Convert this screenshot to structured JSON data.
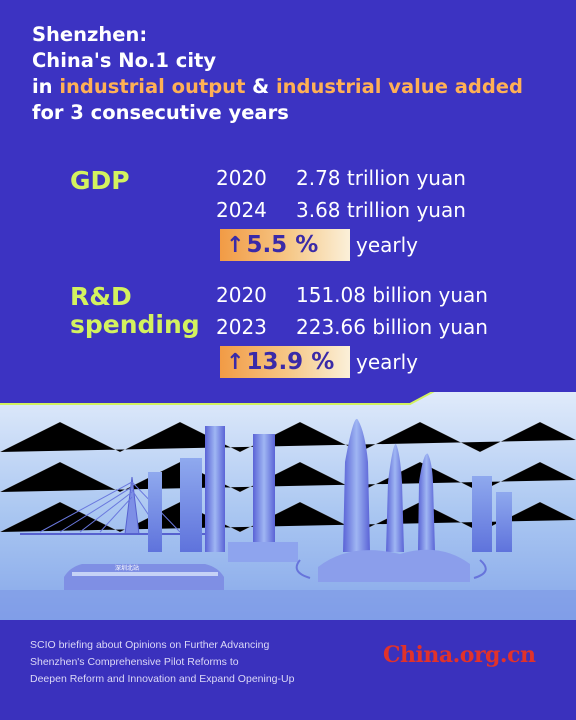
{
  "title": {
    "line1": "Shenzhen:",
    "line2": "China's No.1 city",
    "line3_prefix": "in ",
    "line3_hl1": "industrial output",
    "line3_mid": " & ",
    "line3_hl2": "industrial value added",
    "line4": "for 3 consecutive years"
  },
  "gdp": {
    "label": "GDP",
    "rows": [
      {
        "year": "2020",
        "value": "2.78 trillion yuan"
      },
      {
        "year": "2024",
        "value": "3.68 trillion yuan"
      }
    ],
    "growth": "5.5 %",
    "growth_unit": "yearly"
  },
  "rd": {
    "label_line1": "R&D",
    "label_line2": "spending",
    "rows": [
      {
        "year": "2020",
        "value": "151.08 billion yuan"
      },
      {
        "year": "2023",
        "value": "223.66 billion yuan"
      }
    ],
    "growth": "13.9 %",
    "growth_unit": "yearly"
  },
  "illustration": {
    "station_sign": "深圳北站"
  },
  "footer": {
    "line1": "SCIO briefing about Opinions on Further Advancing",
    "line2": "Shenzhen's Comprehensive Pilot Reforms to",
    "line3": "Deepen Reform and Innovation and Expand Opening-Up",
    "logo": "China.org.cn"
  },
  "colors": {
    "background": "#3c33c2",
    "label_green": "#d3f25f",
    "highlight_orange": "#ffb055",
    "logo_red": "#e1322b"
  }
}
